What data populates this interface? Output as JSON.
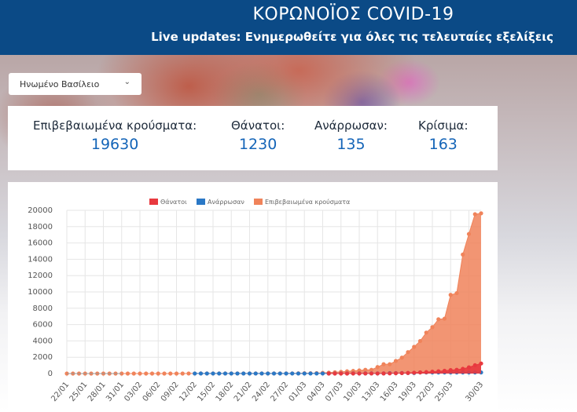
{
  "header": {
    "title": "ΚΟΡΩΝΟΪΟΣ COVID-19",
    "subtitle": "Live updates: Ενημερωθείτε για όλες τις τελευταίες εξελίξεις"
  },
  "country_select": {
    "value": "Ηνωμένο Βασίλειο",
    "icon": "chevron-down-icon"
  },
  "stats": [
    {
      "label": "Επιβεβαιωμένα κρούσματα:",
      "value": "19630"
    },
    {
      "label": "Θάνατοι:",
      "value": "1230"
    },
    {
      "label": "Ανάρρωσαν:",
      "value": "135"
    },
    {
      "label": "Κρίσιμα:",
      "value": "163"
    }
  ],
  "chart_data": {
    "type": "line",
    "ylim": [
      0,
      20000
    ],
    "yticks": [
      0,
      2000,
      4000,
      6000,
      8000,
      10000,
      12000,
      14000,
      16000,
      18000,
      20000
    ],
    "xtick_labels": [
      "22/01",
      "25/01",
      "28/01",
      "31/01",
      "03/02",
      "06/02",
      "09/02",
      "12/02",
      "15/02",
      "18/02",
      "21/02",
      "24/02",
      "27/02",
      "01/03",
      "04/03",
      "07/03",
      "10/03",
      "13/03",
      "16/03",
      "19/03",
      "22/03",
      "25/03",
      "30/03"
    ],
    "xtick_index": [
      0,
      3,
      6,
      9,
      12,
      15,
      18,
      21,
      24,
      27,
      30,
      33,
      36,
      39,
      42,
      45,
      48,
      51,
      54,
      57,
      60,
      63,
      68
    ],
    "n_points": 69,
    "series": [
      {
        "name": "Θάνατοι",
        "color": "#e8393f",
        "values": [
          null,
          null,
          null,
          null,
          null,
          null,
          null,
          null,
          null,
          null,
          null,
          null,
          null,
          null,
          null,
          null,
          null,
          null,
          null,
          null,
          null,
          null,
          null,
          null,
          null,
          null,
          null,
          null,
          null,
          null,
          null,
          null,
          null,
          null,
          null,
          null,
          null,
          null,
          null,
          null,
          null,
          null,
          null,
          1,
          1,
          2,
          2,
          3,
          5,
          7,
          8,
          8,
          10,
          21,
          35,
          56,
          71,
          104,
          144,
          177,
          233,
          281,
          335,
          422,
          465,
          578,
          759,
          1019,
          1230
        ]
      },
      {
        "name": "Ανάρρωσαν",
        "color": "#2a78c6",
        "values": [
          null,
          null,
          null,
          null,
          null,
          null,
          null,
          null,
          null,
          null,
          null,
          null,
          null,
          null,
          null,
          null,
          null,
          null,
          null,
          null,
          null,
          8,
          8,
          8,
          8,
          8,
          8,
          8,
          8,
          8,
          8,
          8,
          8,
          8,
          8,
          8,
          8,
          8,
          8,
          8,
          8,
          8,
          8,
          8,
          18,
          18,
          18,
          18,
          18,
          18,
          18,
          18,
          18,
          52,
          52,
          65,
          65,
          65,
          135,
          135,
          135,
          135,
          135,
          135,
          135,
          135,
          135,
          135,
          135
        ]
      },
      {
        "name": "Επιβεβαιωμένα κρούσματα",
        "color": "#f0835a",
        "values": [
          0,
          0,
          0,
          0,
          0,
          0,
          0,
          0,
          0,
          2,
          2,
          2,
          2,
          2,
          2,
          2,
          2,
          2,
          2,
          2,
          8,
          8,
          9,
          9,
          9,
          9,
          9,
          9,
          9,
          9,
          9,
          9,
          9,
          13,
          13,
          13,
          15,
          20,
          23,
          36,
          40,
          51,
          85,
          115,
          163,
          206,
          273,
          321,
          382,
          456,
          460,
          798,
          1140,
          1140,
          1543,
          1950,
          2626,
          3269,
          3983,
          5018,
          5683,
          6650,
          6726,
          9640,
          9849,
          14579,
          17100,
          19522,
          19630
        ]
      }
    ]
  }
}
